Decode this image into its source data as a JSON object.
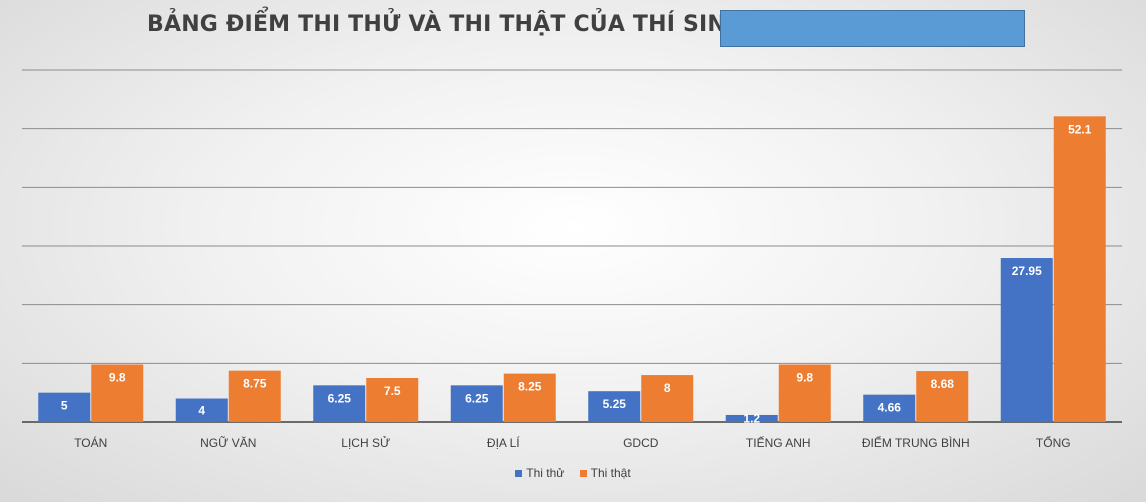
{
  "title": "BẢNG ĐIỂM THI THỬ VÀ THI THẬT CỦA THÍ SINH",
  "colors": {
    "thi_thu": "#4472c4",
    "thi_that": "#ed7d31",
    "redaction": "#5b9bd5"
  },
  "chart_data": {
    "type": "bar",
    "title": "BẢNG ĐIỂM THI THỬ VÀ THI THẬT CỦA THÍ SINH",
    "categories": [
      "TOÁN",
      "NGỮ VĂN",
      "LỊCH SỬ",
      "ĐỊA LÍ",
      "GDCD",
      "TIẾNG ANH",
      "ĐIỂM TRUNG BÌNH",
      "TỔNG"
    ],
    "series": [
      {
        "name": "Thi thử",
        "color": "#4472c4",
        "values": [
          5,
          4,
          6.25,
          6.25,
          5.25,
          1.2,
          4.66,
          27.95
        ],
        "labels": [
          "5",
          "4",
          "6.25",
          "6.25",
          "5.25",
          "1.2",
          "4.66",
          "27.95"
        ]
      },
      {
        "name": "Thi thật",
        "color": "#ed7d31",
        "values": [
          9.8,
          8.75,
          7.5,
          8.25,
          8,
          9.8,
          8.68,
          52.1
        ],
        "labels": [
          "9.8",
          "8.75",
          "7.5",
          "8.25",
          "8",
          "9.8",
          "8.68",
          "52.1"
        ]
      }
    ],
    "ylim": [
      0,
      60
    ],
    "gridlines": true,
    "legend_position": "bottom"
  },
  "legend": [
    {
      "label": "Thi thử",
      "color": "#4472c4"
    },
    {
      "label": "Thi thật",
      "color": "#ed7d31"
    }
  ]
}
